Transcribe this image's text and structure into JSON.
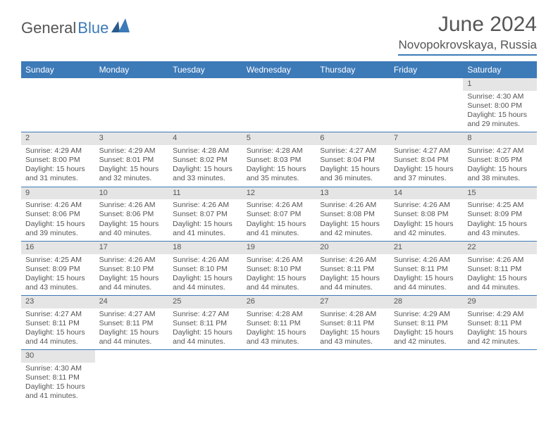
{
  "logo": {
    "part1": "General",
    "part2": "Blue"
  },
  "title": "June 2024",
  "location": "Novopokrovskaya, Russia",
  "colors": {
    "accent": "#3d7ab8",
    "header_bg_stripe": "#e5e5e5",
    "text": "#555555",
    "bg": "#ffffff"
  },
  "weekdays": [
    "Sunday",
    "Monday",
    "Tuesday",
    "Wednesday",
    "Thursday",
    "Friday",
    "Saturday"
  ],
  "first_weekday_index": 6,
  "days": [
    {
      "n": 1,
      "sunrise": "4:30 AM",
      "sunset": "8:00 PM",
      "dl_h": 15,
      "dl_m": 29
    },
    {
      "n": 2,
      "sunrise": "4:29 AM",
      "sunset": "8:00 PM",
      "dl_h": 15,
      "dl_m": 31
    },
    {
      "n": 3,
      "sunrise": "4:29 AM",
      "sunset": "8:01 PM",
      "dl_h": 15,
      "dl_m": 32
    },
    {
      "n": 4,
      "sunrise": "4:28 AM",
      "sunset": "8:02 PM",
      "dl_h": 15,
      "dl_m": 33
    },
    {
      "n": 5,
      "sunrise": "4:28 AM",
      "sunset": "8:03 PM",
      "dl_h": 15,
      "dl_m": 35
    },
    {
      "n": 6,
      "sunrise": "4:27 AM",
      "sunset": "8:04 PM",
      "dl_h": 15,
      "dl_m": 36
    },
    {
      "n": 7,
      "sunrise": "4:27 AM",
      "sunset": "8:04 PM",
      "dl_h": 15,
      "dl_m": 37
    },
    {
      "n": 8,
      "sunrise": "4:27 AM",
      "sunset": "8:05 PM",
      "dl_h": 15,
      "dl_m": 38
    },
    {
      "n": 9,
      "sunrise": "4:26 AM",
      "sunset": "8:06 PM",
      "dl_h": 15,
      "dl_m": 39
    },
    {
      "n": 10,
      "sunrise": "4:26 AM",
      "sunset": "8:06 PM",
      "dl_h": 15,
      "dl_m": 40
    },
    {
      "n": 11,
      "sunrise": "4:26 AM",
      "sunset": "8:07 PM",
      "dl_h": 15,
      "dl_m": 41
    },
    {
      "n": 12,
      "sunrise": "4:26 AM",
      "sunset": "8:07 PM",
      "dl_h": 15,
      "dl_m": 41
    },
    {
      "n": 13,
      "sunrise": "4:26 AM",
      "sunset": "8:08 PM",
      "dl_h": 15,
      "dl_m": 42
    },
    {
      "n": 14,
      "sunrise": "4:26 AM",
      "sunset": "8:08 PM",
      "dl_h": 15,
      "dl_m": 42
    },
    {
      "n": 15,
      "sunrise": "4:25 AM",
      "sunset": "8:09 PM",
      "dl_h": 15,
      "dl_m": 43
    },
    {
      "n": 16,
      "sunrise": "4:25 AM",
      "sunset": "8:09 PM",
      "dl_h": 15,
      "dl_m": 43
    },
    {
      "n": 17,
      "sunrise": "4:26 AM",
      "sunset": "8:10 PM",
      "dl_h": 15,
      "dl_m": 44
    },
    {
      "n": 18,
      "sunrise": "4:26 AM",
      "sunset": "8:10 PM",
      "dl_h": 15,
      "dl_m": 44
    },
    {
      "n": 19,
      "sunrise": "4:26 AM",
      "sunset": "8:10 PM",
      "dl_h": 15,
      "dl_m": 44
    },
    {
      "n": 20,
      "sunrise": "4:26 AM",
      "sunset": "8:11 PM",
      "dl_h": 15,
      "dl_m": 44
    },
    {
      "n": 21,
      "sunrise": "4:26 AM",
      "sunset": "8:11 PM",
      "dl_h": 15,
      "dl_m": 44
    },
    {
      "n": 22,
      "sunrise": "4:26 AM",
      "sunset": "8:11 PM",
      "dl_h": 15,
      "dl_m": 44
    },
    {
      "n": 23,
      "sunrise": "4:27 AM",
      "sunset": "8:11 PM",
      "dl_h": 15,
      "dl_m": 44
    },
    {
      "n": 24,
      "sunrise": "4:27 AM",
      "sunset": "8:11 PM",
      "dl_h": 15,
      "dl_m": 44
    },
    {
      "n": 25,
      "sunrise": "4:27 AM",
      "sunset": "8:11 PM",
      "dl_h": 15,
      "dl_m": 44
    },
    {
      "n": 26,
      "sunrise": "4:28 AM",
      "sunset": "8:11 PM",
      "dl_h": 15,
      "dl_m": 43
    },
    {
      "n": 27,
      "sunrise": "4:28 AM",
      "sunset": "8:11 PM",
      "dl_h": 15,
      "dl_m": 43
    },
    {
      "n": 28,
      "sunrise": "4:29 AM",
      "sunset": "8:11 PM",
      "dl_h": 15,
      "dl_m": 42
    },
    {
      "n": 29,
      "sunrise": "4:29 AM",
      "sunset": "8:11 PM",
      "dl_h": 15,
      "dl_m": 42
    },
    {
      "n": 30,
      "sunrise": "4:30 AM",
      "sunset": "8:11 PM",
      "dl_h": 15,
      "dl_m": 41
    }
  ],
  "labels": {
    "sunrise": "Sunrise:",
    "sunset": "Sunset:",
    "daylight_prefix": "Daylight:",
    "hours_word": "hours",
    "and_word": "and",
    "minutes_word": "minutes."
  }
}
